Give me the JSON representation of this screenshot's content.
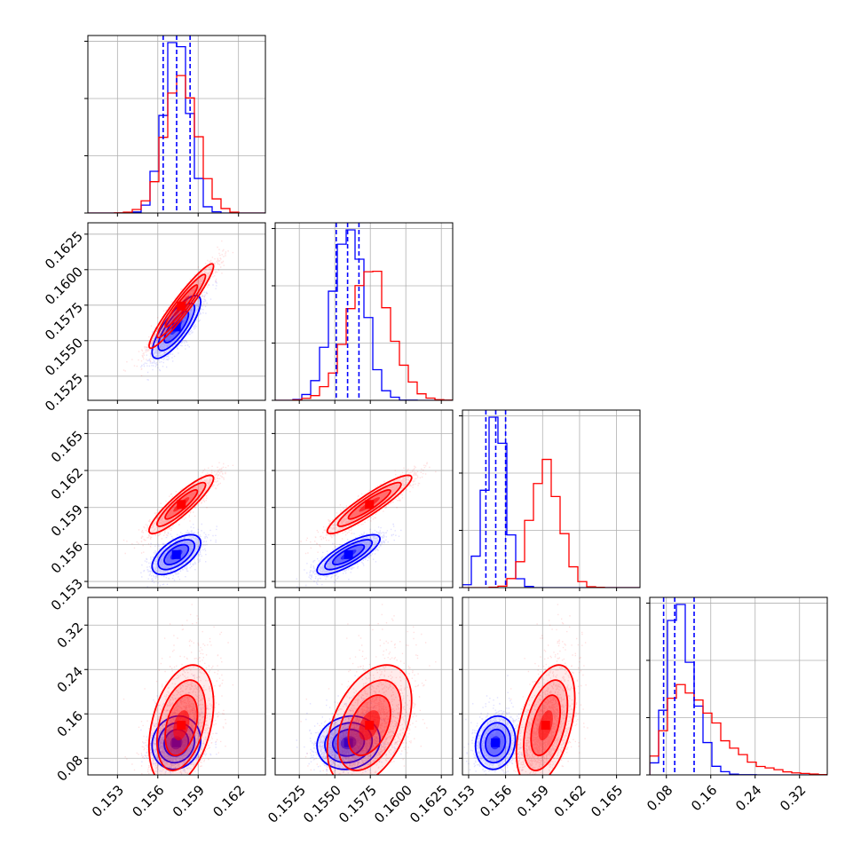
{
  "chart_data": {
    "type": "corner",
    "grid": true,
    "series": [
      {
        "color": "#0000ff",
        "means": [
          0.1574,
          0.156,
          0.1552,
          0.105
        ],
        "sds": [
          0.0009,
          0.0011,
          0.0008,
          0.025
        ],
        "correlations": [
          [
            0,
            1,
            0.8
          ],
          [
            0,
            2,
            0.6
          ],
          [
            1,
            2,
            0.8
          ],
          [
            0,
            3,
            0.1
          ],
          [
            1,
            3,
            0.1
          ],
          [
            2,
            3,
            0.1
          ]
        ],
        "quantiles": [
          [
            0.1564,
            0.1574,
            0.1584
          ],
          [
            0.1551,
            0.1559,
            0.1567
          ],
          [
            0.1544,
            0.1552,
            0.156
          ],
          [
            0.075,
            0.095,
            0.13
          ]
        ]
      },
      {
        "color": "#ff0000",
        "means": [
          0.1578,
          0.1575,
          0.1593,
          0.13
        ],
        "sds": [
          0.0012,
          0.0015,
          0.0012,
          0.05
        ],
        "correlations": [
          [
            0,
            1,
            0.95
          ],
          [
            0,
            2,
            0.9
          ],
          [
            1,
            2,
            0.92
          ],
          [
            0,
            3,
            0.4
          ],
          [
            1,
            3,
            0.45
          ],
          [
            2,
            3,
            0.5
          ]
        ]
      }
    ],
    "params": [
      {
        "range": [
          0.1508,
          0.164
        ],
        "ticks": [
          0.153,
          0.156,
          0.159,
          0.162
        ],
        "tick_labels": [
          "0.153",
          "0.156",
          "0.159",
          "0.162"
        ]
      },
      {
        "range": [
          0.1508,
          0.1633
        ],
        "ticks": [
          0.1525,
          0.155,
          0.1575,
          0.16,
          0.1625
        ],
        "tick_labels": [
          "0.1525",
          "0.1550",
          "0.1575",
          "0.1600",
          "0.1625"
        ]
      },
      {
        "range": [
          0.1525,
          0.1669
        ],
        "ticks": [
          0.153,
          0.156,
          0.159,
          0.162,
          0.165
        ],
        "tick_labels": [
          "0.153",
          "0.156",
          "0.159",
          "0.162",
          "0.165"
        ]
      },
      {
        "range": [
          0.05,
          0.37
        ],
        "ticks": [
          0.08,
          0.16,
          0.24,
          0.32
        ],
        "tick_labels": [
          "0.08",
          "0.16",
          "0.24",
          "0.32"
        ]
      }
    ]
  }
}
